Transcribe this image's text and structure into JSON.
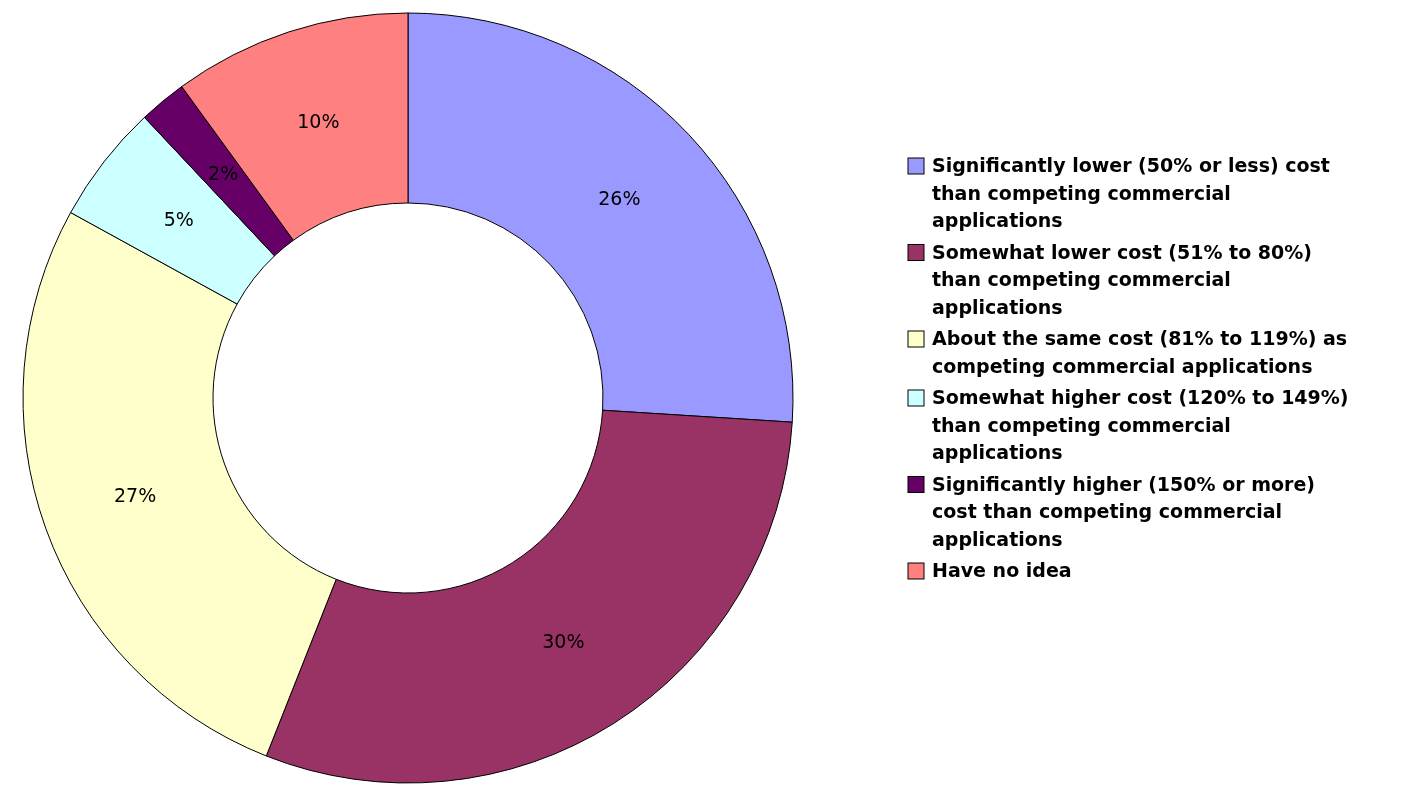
{
  "chart_data": {
    "type": "donut",
    "categories": [
      "Significantly lower (50% or less) cost than competing commercial applications",
      "Somewhat lower cost (51% to 80%) than competing commercial applications",
      "About the same cost (81% to 119%) as competing commercial applications",
      "Somewhat higher cost (120% to 149%) than competing commercial applications",
      "Significantly higher (150% or more) cost than competing commercial applications",
      "Have no idea"
    ],
    "values": [
      26,
      30,
      27,
      5,
      2,
      10
    ],
    "colors": [
      "#9999ff",
      "#993366",
      "#ffffcc",
      "#ccffff",
      "#660066",
      "#ff8080"
    ],
    "value_labels": [
      "26%",
      "30%",
      "27%",
      "5%",
      "2%",
      "10%"
    ],
    "legend": "right"
  }
}
